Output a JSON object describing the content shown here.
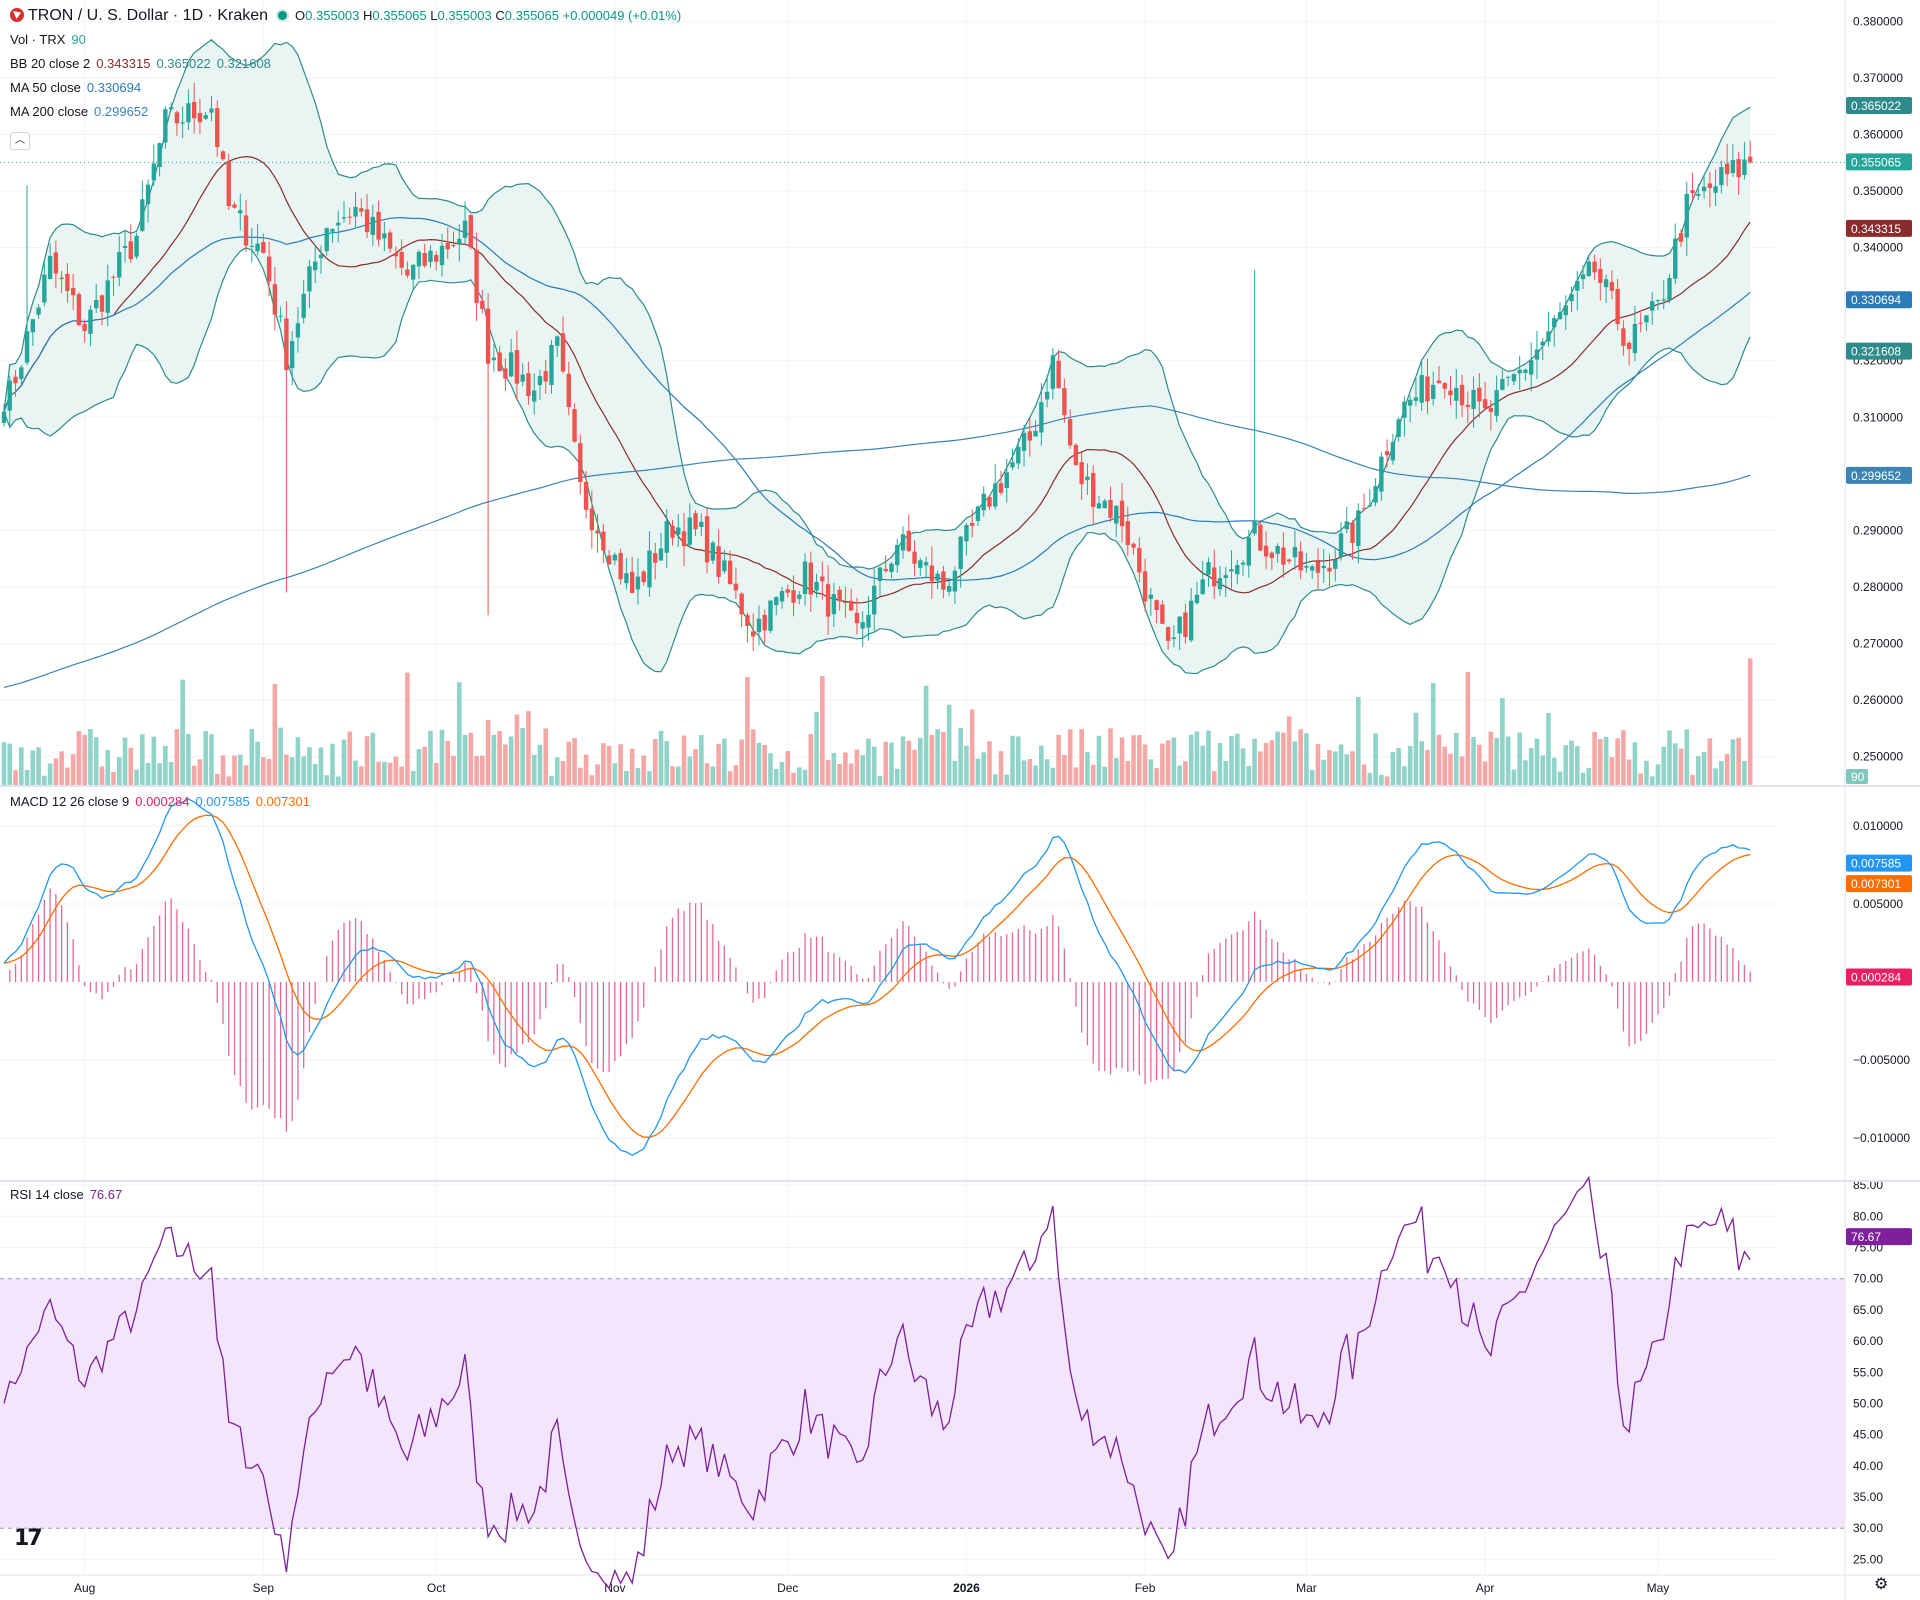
{
  "header": {
    "symbol": "TRON / U. S. Dollar · 1D · Kraken",
    "open_label": "O",
    "open": "0.355003",
    "high_label": "H",
    "high": "0.355065",
    "low_label": "L",
    "low": "0.355003",
    "close_label": "C",
    "close": "0.355065",
    "change": "+0.000049 (+0.01%)"
  },
  "indicators": {
    "vol": {
      "label": "Vol · TRX",
      "value": "90"
    },
    "bb": {
      "label": "BB 20 close 2",
      "basis": "0.343315",
      "upper": "0.365022",
      "lower": "0.321608"
    },
    "ma50": {
      "label": "MA 50 close",
      "value": "0.330694"
    },
    "ma200": {
      "label": "MA 200 close",
      "value": "0.299652"
    },
    "macd": {
      "label": "MACD 12 26 close 9",
      "hist": "0.000284",
      "macd": "0.007585",
      "signal": "0.007301"
    },
    "rsi": {
      "label": "RSI 14 close",
      "value": "76.67"
    }
  },
  "price_axis": [
    "0.380000",
    "0.370000",
    "0.360000",
    "0.350000",
    "0.340000",
    "0.320000",
    "0.310000",
    "0.290000",
    "0.280000",
    "0.270000",
    "0.260000",
    "0.250000"
  ],
  "price_tags": {
    "upper": "0.365022",
    "last": "0.355065",
    "basis": "0.343315",
    "ma50": "0.330694",
    "lower": "0.321608",
    "ma200": "0.299652",
    "vol": "90"
  },
  "macd_axis": [
    "0.010000",
    "0.005000",
    "−0.005000",
    "−0.010000"
  ],
  "macd_tags": {
    "macd": "0.007585",
    "signal": "0.007301",
    "hist": "0.000284"
  },
  "rsi_axis": [
    "85.00",
    "80.00",
    "75.00",
    "70.00",
    "65.00",
    "60.00",
    "55.00",
    "50.00",
    "45.00",
    "40.00",
    "35.00",
    "30.00",
    "25.00"
  ],
  "rsi_tag": "76.67",
  "time_axis": [
    "Aug",
    "Sep",
    "Oct",
    "Nov",
    "Dec",
    "2026",
    "Feb",
    "Mar",
    "Apr",
    "May"
  ],
  "colors": {
    "up": "#26a69a",
    "down": "#ef5350",
    "basis": "#8b2b2b",
    "bb": "#2e8b8b",
    "bb_fill": "#e8f5f3",
    "ma50": "#2b7bb9",
    "ma200": "#3b84b5",
    "macd": "#2196f3",
    "signal": "#ff6d00",
    "hist": "#e91e63",
    "rsi": "#7e1f9c",
    "rsi_band": "#f3e5fc"
  },
  "chart_data": {
    "type": "candlestick",
    "timeframe": "1D",
    "x_range": [
      "2025-07-18",
      "2026-05-17"
    ],
    "price_ylim": [
      0.245,
      0.382
    ],
    "anchors": [
      {
        "date": "2025-07-19",
        "close": 0.314
      },
      {
        "date": "2025-07-26",
        "close": 0.337
      },
      {
        "date": "2025-08-01",
        "close": 0.326
      },
      {
        "date": "2025-08-10",
        "close": 0.342
      },
      {
        "date": "2025-08-15",
        "close": 0.362
      },
      {
        "date": "2025-08-23",
        "close": 0.365
      },
      {
        "date": "2025-08-26",
        "close": 0.347
      },
      {
        "date": "2025-09-01",
        "close": 0.339
      },
      {
        "date": "2025-09-05",
        "close": 0.321
      },
      {
        "date": "2025-09-12",
        "close": 0.344
      },
      {
        "date": "2025-09-17",
        "close": 0.347
      },
      {
        "date": "2025-09-26",
        "close": 0.335
      },
      {
        "date": "2025-10-06",
        "close": 0.343
      },
      {
        "date": "2025-10-10",
        "close": 0.322
      },
      {
        "date": "2025-10-18",
        "close": 0.315
      },
      {
        "date": "2025-10-22",
        "close": 0.322
      },
      {
        "date": "2025-10-26",
        "close": 0.297
      },
      {
        "date": "2025-11-04",
        "close": 0.279
      },
      {
        "date": "2025-11-11",
        "close": 0.291
      },
      {
        "date": "2025-11-16",
        "close": 0.289
      },
      {
        "date": "2025-11-25",
        "close": 0.273
      },
      {
        "date": "2025-12-04",
        "close": 0.282
      },
      {
        "date": "2025-12-13",
        "close": 0.272
      },
      {
        "date": "2025-12-20",
        "close": 0.288
      },
      {
        "date": "2025-12-28",
        "close": 0.28
      },
      {
        "date": "2026-01-05",
        "close": 0.296
      },
      {
        "date": "2026-01-12",
        "close": 0.306
      },
      {
        "date": "2026-01-16",
        "close": 0.32
      },
      {
        "date": "2026-01-20",
        "close": 0.3
      },
      {
        "date": "2026-01-28",
        "close": 0.292
      },
      {
        "date": "2026-02-05",
        "close": 0.268
      },
      {
        "date": "2026-02-12",
        "close": 0.282
      },
      {
        "date": "2026-02-20",
        "close": 0.289
      },
      {
        "date": "2026-03-02",
        "close": 0.282
      },
      {
        "date": "2026-03-10",
        "close": 0.291
      },
      {
        "date": "2026-03-17",
        "close": 0.311
      },
      {
        "date": "2026-03-25",
        "close": 0.318
      },
      {
        "date": "2026-04-01",
        "close": 0.31
      },
      {
        "date": "2026-04-10",
        "close": 0.322
      },
      {
        "date": "2026-04-20",
        "close": 0.336
      },
      {
        "date": "2026-04-26",
        "close": 0.323
      },
      {
        "date": "2026-05-01",
        "close": 0.329
      },
      {
        "date": "2026-05-06",
        "close": 0.347
      },
      {
        "date": "2026-05-12",
        "close": 0.352
      },
      {
        "date": "2026-05-17",
        "close": 0.355065
      }
    ],
    "last_close": 0.355065,
    "bollinger": {
      "period": 20,
      "mult": 2,
      "basis": 0.343315,
      "upper": 0.365022,
      "lower": 0.321608
    },
    "ma50": 0.330694,
    "ma200": 0.299652,
    "volume_last": 90,
    "macd": {
      "fast": 12,
      "slow": 26,
      "signal": 9,
      "macd": 0.007585,
      "signal_value": 0.007301,
      "hist": 0.000284,
      "ylim": [
        -0.0127,
        0.0125
      ]
    },
    "rsi": {
      "period": 14,
      "value": 76.67,
      "ylim": [
        22.5,
        85.5
      ],
      "band": [
        30,
        70
      ]
    }
  }
}
